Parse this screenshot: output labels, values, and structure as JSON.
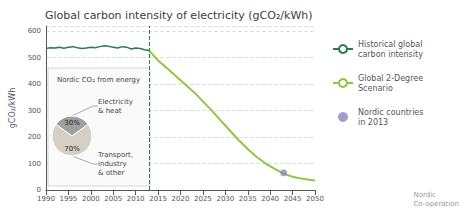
{
  "chart_data": [
    {
      "type": "line",
      "title": "Global carbon intensity of electricity (gCO₂/kWh)",
      "ylabel": "gCO₂/kWh",
      "xlim": [
        1990,
        2050
      ],
      "ylim": [
        0,
        620
      ],
      "xticks": [
        1990,
        1995,
        2000,
        2005,
        2010,
        2015,
        2020,
        2025,
        2030,
        2035,
        2040,
        2045,
        2050
      ],
      "yticks": [
        0,
        100,
        200,
        300,
        400,
        500,
        600
      ],
      "grid": true,
      "legend": "right",
      "vline": 2013,
      "footnote": "Nordic\nCo-operation",
      "series": [
        {
          "name": "Historical global\ncarbon intensity",
          "type": "line",
          "color": "#2d7a4f",
          "x": [
            1990,
            1991,
            1992,
            1993,
            1994,
            1995,
            1996,
            1997,
            1998,
            1999,
            2000,
            2001,
            2002,
            2003,
            2004,
            2005,
            2006,
            2007,
            2008,
            2009,
            2010,
            2011,
            2012,
            2013
          ],
          "values": [
            535,
            538,
            537,
            540,
            536,
            540,
            542,
            538,
            535,
            537,
            540,
            538,
            542,
            545,
            543,
            540,
            537,
            542,
            540,
            533,
            537,
            535,
            530,
            527
          ]
        },
        {
          "name": "Global 2-Degree\nScenario",
          "type": "line",
          "color": "#8ec63f",
          "x": [
            2013,
            2015,
            2017,
            2019,
            2021,
            2023,
            2025,
            2027,
            2029,
            2031,
            2033,
            2035,
            2037,
            2039,
            2041,
            2043,
            2045,
            2047,
            2049,
            2050
          ],
          "values": [
            527,
            490,
            460,
            430,
            400,
            370,
            335,
            300,
            262,
            225,
            188,
            155,
            125,
            100,
            80,
            62,
            50,
            43,
            38,
            36
          ]
        },
        {
          "name": "Nordic countries\nin 2013",
          "type": "scatter",
          "color": "#8b87c0",
          "x": [
            2043
          ],
          "values": [
            65
          ]
        }
      ]
    },
    {
      "type": "pie",
      "title": "Nordic CO₂ from energy",
      "categories": [
        "Electricity\n& heat",
        "Transport,\nindustry\n& other"
      ],
      "values": [
        30,
        70
      ],
      "value_labels": [
        "30%",
        "70%"
      ],
      "data_labels": true,
      "colors": [
        "#a0a0a0",
        "#d4d0c4"
      ]
    }
  ]
}
